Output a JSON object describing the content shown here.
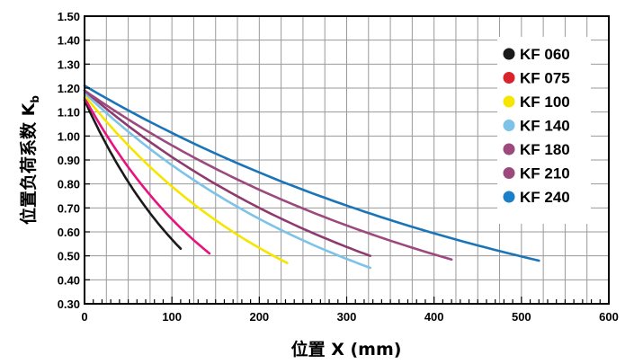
{
  "chart_data": {
    "type": "line",
    "xlabel": "位置 X (mm)",
    "ylabel": "位置负荷系数 K",
    "ylabel_sub": "b",
    "xlim": [
      0,
      600
    ],
    "ylim": [
      0.3,
      1.5
    ],
    "x_ticks": [
      "0",
      "100",
      "200",
      "300",
      "400",
      "500",
      "600"
    ],
    "y_ticks": [
      "0.30",
      "0.40",
      "0.50",
      "0.60",
      "0.70",
      "0.80",
      "0.90",
      "1.00",
      "1.10",
      "1.20",
      "1.30",
      "1.40",
      "1.50"
    ],
    "grid": true,
    "legend_position": "right",
    "series": [
      {
        "name": "KF 060",
        "color": "#1a1a1a",
        "k0": 1.15,
        "xend": 110,
        "yend": 0.53
      },
      {
        "name": "KF 075",
        "color": "#e8127c",
        "k0": 1.16,
        "xend": 143,
        "yend": 0.51
      },
      {
        "name": "KF 100",
        "color": "#f5e600",
        "k0": 1.17,
        "xend": 232,
        "yend": 0.47
      },
      {
        "name": "KF 140",
        "color": "#7dc3e8",
        "k0": 1.18,
        "xend": 327,
        "yend": 0.45
      },
      {
        "name": "KF 180",
        "color": "#8e3a6e",
        "k0": 1.19,
        "xend": 327,
        "yend": 0.5
      },
      {
        "name": "KF 210",
        "color": "#9c4a7e",
        "k0": 1.19,
        "xend": 420,
        "yend": 0.485
      },
      {
        "name": "KF 240",
        "color": "#1a75b8",
        "k0": 1.21,
        "xend": 520,
        "yend": 0.48
      }
    ],
    "legend_dot_colors": [
      "#1a1a1a",
      "#d9232a",
      "#f5e600",
      "#7dc3e8",
      "#9c4a7e",
      "#9c4a7e",
      "#1a7fc9"
    ]
  }
}
